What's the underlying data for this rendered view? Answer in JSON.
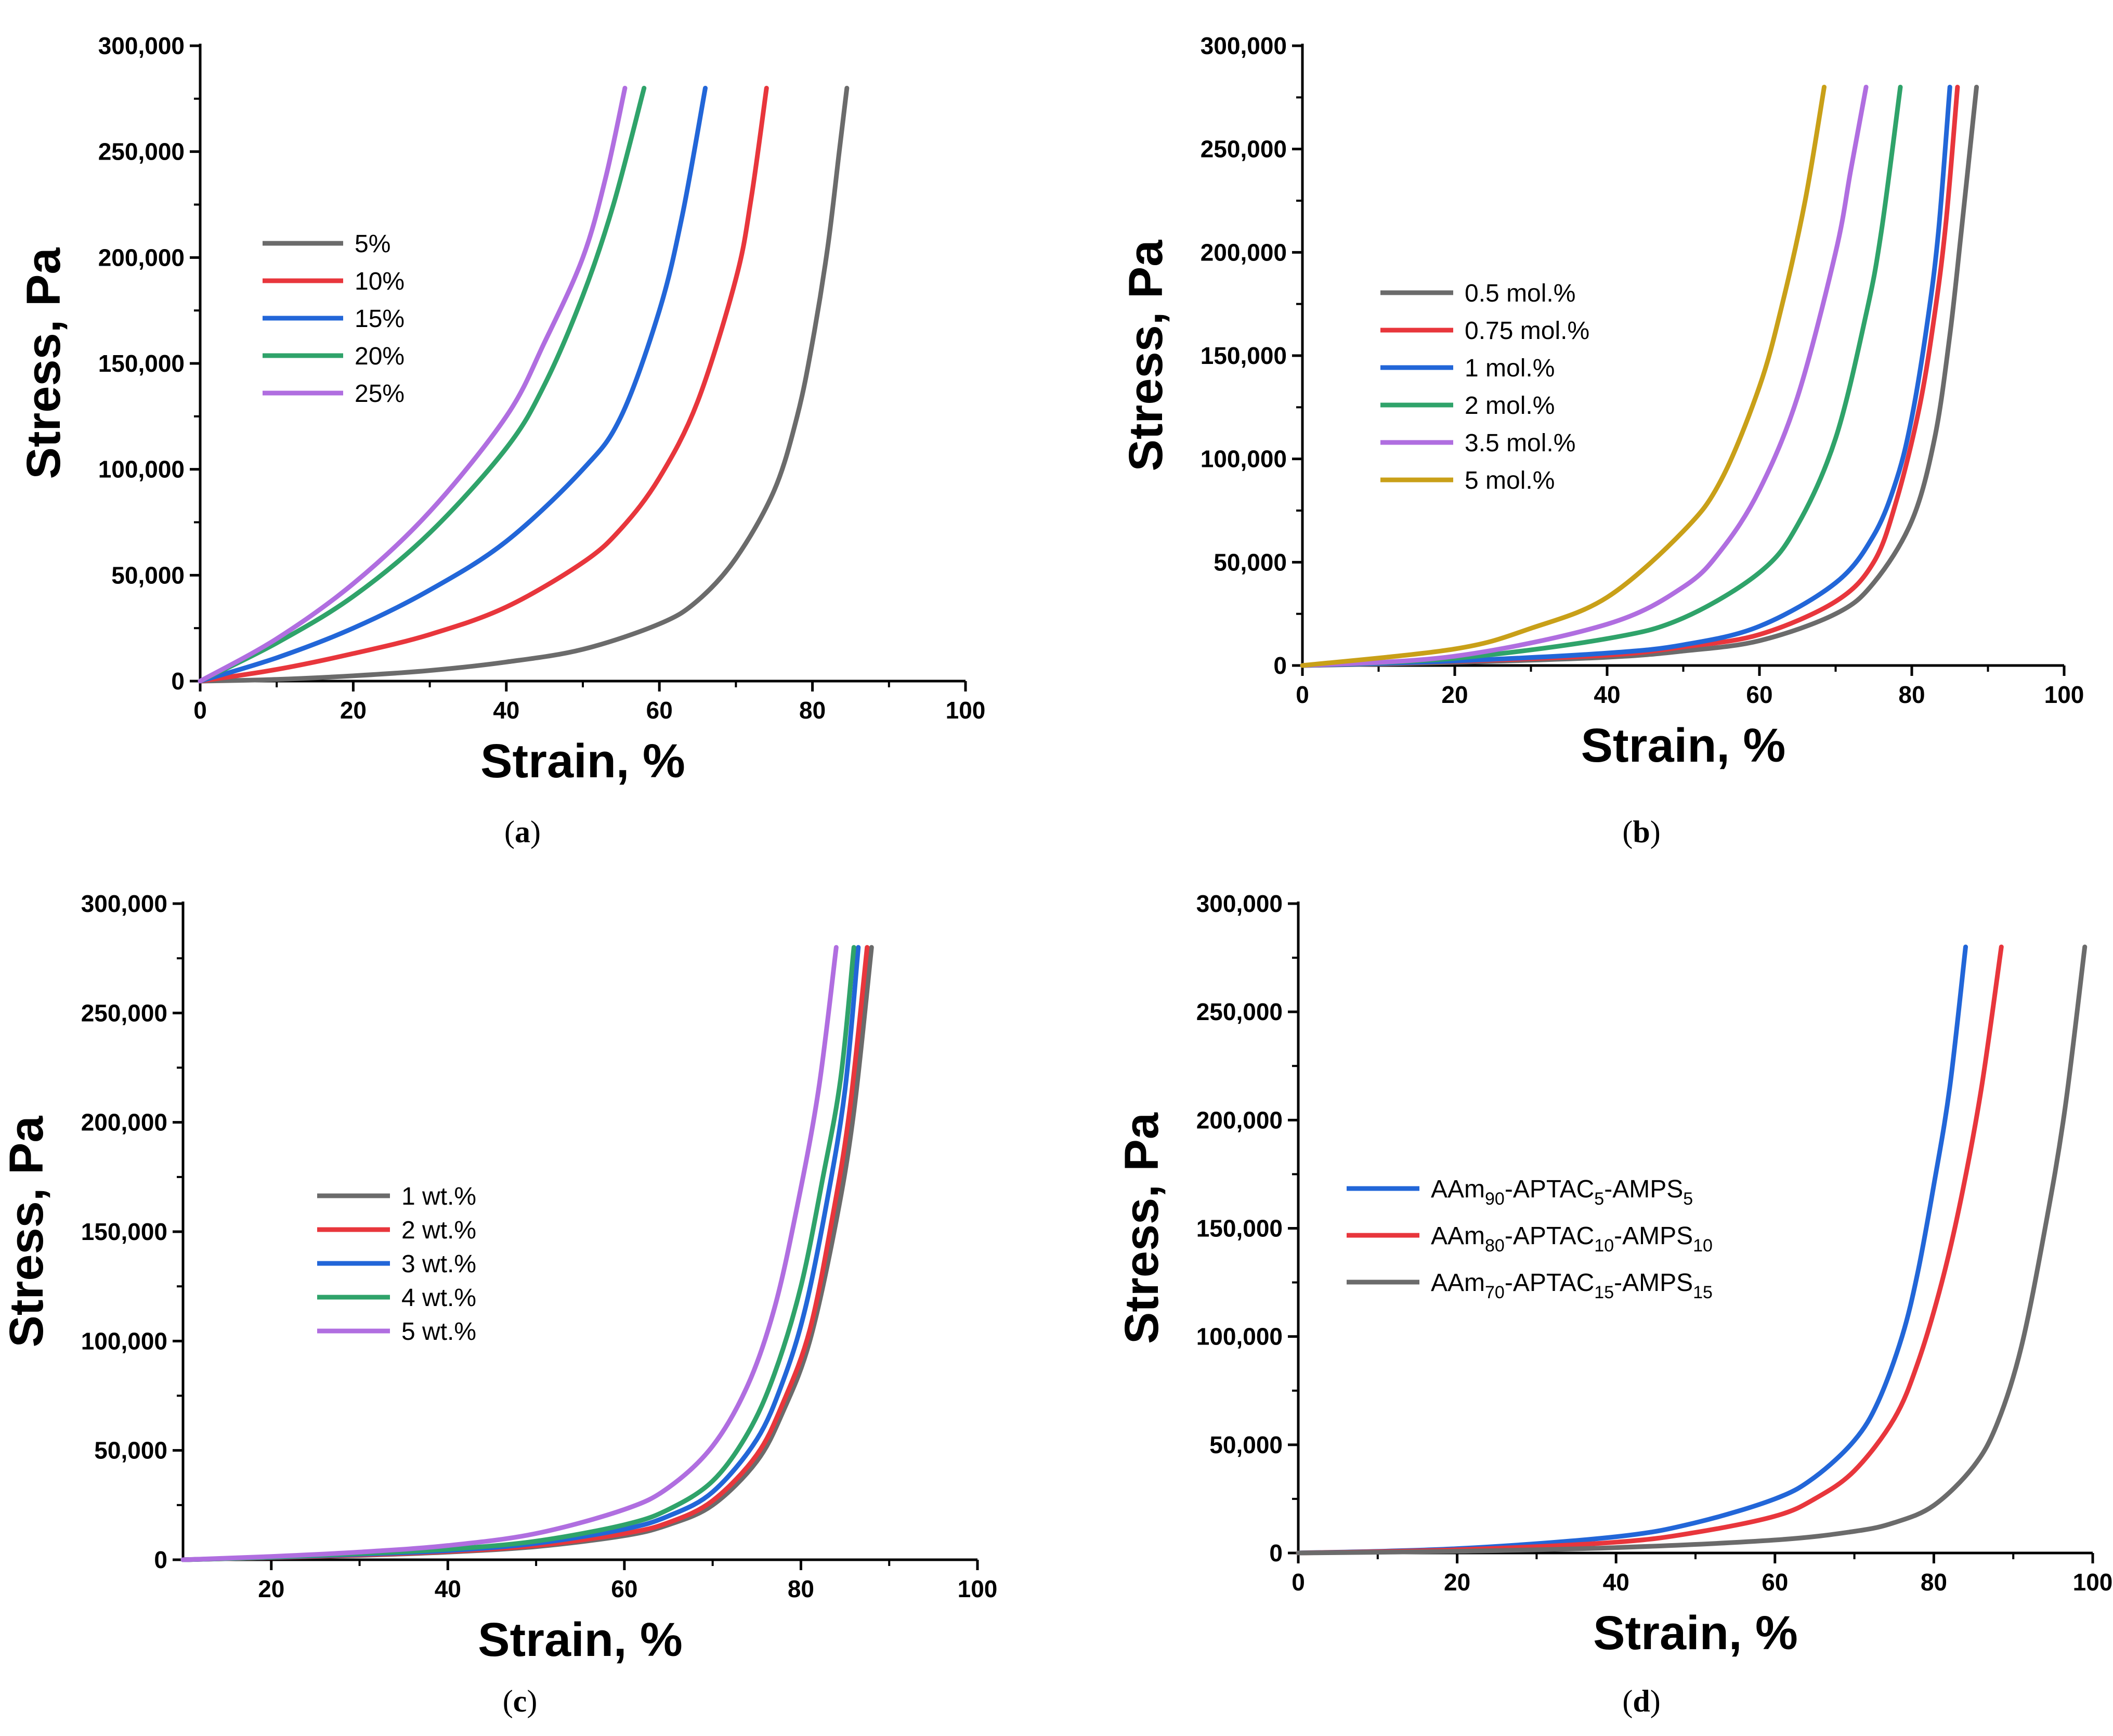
{
  "figure": {
    "panels": [
      "(a)",
      "(b)",
      "(c)",
      "(d)"
    ]
  },
  "chart_data": [
    {
      "panel": "a",
      "panel_label_open": "(",
      "panel_label_letter": "a",
      "panel_label_close": ")",
      "type": "line",
      "xlabel": "Strain, %",
      "ylabel": "Stress, Pa",
      "xlim": [
        0,
        100
      ],
      "ylim": [
        0,
        300000
      ],
      "xticks": [
        0,
        20,
        40,
        60,
        80,
        100
      ],
      "xtick_labels": [
        "0",
        "20",
        "40",
        "60",
        "80",
        "100"
      ],
      "yticks": [
        0,
        50000,
        100000,
        150000,
        200000,
        250000,
        300000
      ],
      "ytick_labels": [
        "0",
        "50,000",
        "100,000",
        "150,000",
        "200,000",
        "250,000",
        "300,000"
      ],
      "legend_position": "upper-left",
      "series": [
        {
          "name": "5%",
          "color": "#6b6b6b",
          "x": [
            0,
            10,
            20,
            30,
            40,
            50,
            60,
            65,
            70,
            75,
            78,
            80,
            82,
            83.5,
            84.5
          ],
          "y": [
            0,
            800,
            2500,
            5000,
            9000,
            15000,
            27000,
            38000,
            58000,
            90000,
            125000,
            160000,
            205000,
            250000,
            280000
          ]
        },
        {
          "name": "10%",
          "color": "#e8363c",
          "x": [
            0,
            10,
            20,
            30,
            40,
            50,
            55,
            60,
            65,
            70,
            72,
            74
          ],
          "y": [
            0,
            5500,
            13000,
            22000,
            35000,
            56000,
            72000,
            96000,
            132000,
            190000,
            228000,
            280000
          ]
        },
        {
          "name": "15%",
          "color": "#2266d8",
          "x": [
            0,
            10,
            20,
            30,
            40,
            50,
            55,
            60,
            63,
            66
          ],
          "y": [
            0,
            11000,
            25000,
            43000,
            66000,
            100000,
            125000,
            175000,
            220000,
            280000
          ]
        },
        {
          "name": "20%",
          "color": "#2fa36a",
          "x": [
            0,
            10,
            20,
            30,
            40,
            45,
            50,
            54,
            58
          ],
          "y": [
            0,
            18000,
            40000,
            70000,
            110000,
            140000,
            182000,
            225000,
            280000
          ]
        },
        {
          "name": "25%",
          "color": "#b06ee0",
          "x": [
            0,
            10,
            20,
            30,
            40,
            45,
            50,
            53,
            55.5
          ],
          "y": [
            0,
            20000,
            46000,
            80000,
            125000,
            160000,
            200000,
            238000,
            280000
          ]
        }
      ]
    },
    {
      "panel": "b",
      "panel_label_open": "(",
      "panel_label_letter": "b",
      "panel_label_close": ")",
      "type": "line",
      "xlabel": "Strain, %",
      "ylabel": "Stress, Pa",
      "xlim": [
        0,
        100
      ],
      "ylim": [
        0,
        300000
      ],
      "xticks": [
        0,
        20,
        40,
        60,
        80,
        100
      ],
      "xtick_labels": [
        "0",
        "20",
        "40",
        "60",
        "80",
        "100"
      ],
      "yticks": [
        0,
        50000,
        100000,
        150000,
        200000,
        250000,
        300000
      ],
      "ytick_labels": [
        "0",
        "50,000",
        "100,000",
        "150,000",
        "200,000",
        "250,000",
        "300,000"
      ],
      "legend_position": "center-left",
      "series": [
        {
          "name": "0.5 mol.%",
          "color": "#6b6b6b",
          "x": [
            0,
            20,
            40,
            50,
            60,
            70,
            75,
            80,
            83,
            85,
            86.5,
            88.5
          ],
          "y": [
            0,
            1500,
            4000,
            7000,
            12000,
            25000,
            40000,
            70000,
            110000,
            160000,
            210000,
            280000
          ]
        },
        {
          "name": "0.75 mol.%",
          "color": "#e8363c",
          "x": [
            0,
            20,
            40,
            50,
            60,
            70,
            75,
            78,
            81,
            83,
            84.5,
            86
          ],
          "y": [
            0,
            2000,
            5000,
            9000,
            15000,
            31000,
            50000,
            80000,
            125000,
            170000,
            215000,
            280000
          ]
        },
        {
          "name": "1 mol.%",
          "color": "#2266d8",
          "x": [
            0,
            20,
            40,
            50,
            60,
            70,
            75,
            78,
            80,
            82,
            83.5,
            85
          ],
          "y": [
            0,
            2200,
            6000,
            10000,
            19000,
            40000,
            63000,
            90000,
            120000,
            165000,
            210000,
            280000
          ]
        },
        {
          "name": "2 mol.%",
          "color": "#2fa36a",
          "x": [
            0,
            20,
            40,
            50,
            60,
            65,
            70,
            74,
            76,
            78.5
          ],
          "y": [
            0,
            3500,
            13000,
            23000,
            45000,
            68000,
            110000,
            170000,
            210000,
            280000
          ]
        },
        {
          "name": "3.5 mol.%",
          "color": "#b06ee0",
          "x": [
            0,
            20,
            40,
            50,
            55,
            60,
            65,
            70,
            72,
            74
          ],
          "y": [
            0,
            4500,
            20000,
            38000,
            56000,
            85000,
            130000,
            200000,
            240000,
            280000
          ]
        },
        {
          "name": "5 mol.%",
          "color": "#c9a018",
          "x": [
            0,
            20,
            30,
            40,
            50,
            55,
            60,
            63,
            66,
            68.5
          ],
          "y": [
            0,
            8000,
            18000,
            33000,
            65000,
            90000,
            135000,
            175000,
            225000,
            280000
          ]
        }
      ]
    },
    {
      "panel": "c",
      "panel_label_open": "(",
      "panel_label_letter": "c",
      "panel_label_close": ")",
      "type": "line",
      "xlabel": "Strain, %",
      "ylabel": "Stress, Pa",
      "xlim": [
        10,
        100
      ],
      "ylim": [
        0,
        300000
      ],
      "xticks": [
        20,
        40,
        60,
        80,
        100
      ],
      "xtick_labels": [
        "20",
        "40",
        "60",
        "80",
        "100"
      ],
      "yticks": [
        0,
        50000,
        100000,
        150000,
        200000,
        250000,
        300000
      ],
      "ytick_labels": [
        "0",
        "50,000",
        "100,000",
        "150,000",
        "200,000",
        "250,000",
        "300,000"
      ],
      "legend_position": "center",
      "series": [
        {
          "name": "1 wt.%",
          "color": "#6b6b6b",
          "x": [
            10,
            20,
            30,
            40,
            50,
            60,
            65,
            70,
            75,
            78,
            81,
            84,
            86,
            88
          ],
          "y": [
            0,
            1000,
            2000,
            3500,
            6000,
            11000,
            16000,
            25000,
            45000,
            68000,
            100000,
            155000,
            205000,
            280000
          ]
        },
        {
          "name": "2 wt.%",
          "color": "#e8363c",
          "x": [
            10,
            20,
            30,
            40,
            50,
            60,
            65,
            70,
            75,
            78,
            81,
            83.5,
            85.5,
            87.5
          ],
          "y": [
            0,
            1000,
            2200,
            3800,
            6500,
            12000,
            17000,
            27000,
            48000,
            72000,
            105000,
            155000,
            205000,
            280000
          ]
        },
        {
          "name": "3 wt.%",
          "color": "#2266d8",
          "x": [
            10,
            20,
            30,
            40,
            50,
            60,
            65,
            70,
            75,
            78,
            80.5,
            83,
            85,
            86.5
          ],
          "y": [
            0,
            1100,
            2500,
            4200,
            7500,
            14000,
            20000,
            31000,
            55000,
            82000,
            115000,
            165000,
            215000,
            280000
          ]
        },
        {
          "name": "4 wt.%",
          "color": "#2fa36a",
          "x": [
            10,
            20,
            30,
            40,
            50,
            60,
            65,
            70,
            74,
            77,
            80,
            82.5,
            84.5,
            86
          ],
          "y": [
            0,
            1200,
            2800,
            4800,
            8500,
            16000,
            23000,
            36000,
            58000,
            85000,
            125000,
            175000,
            220000,
            280000
          ]
        },
        {
          "name": "5 wt.%",
          "color": "#b06ee0",
          "x": [
            10,
            20,
            30,
            40,
            50,
            60,
            65,
            70,
            74,
            77,
            79.5,
            82,
            84
          ],
          "y": [
            0,
            1500,
            3500,
            6500,
            12000,
            23000,
            33000,
            52000,
            80000,
            115000,
            160000,
            215000,
            280000
          ]
        }
      ]
    },
    {
      "panel": "d",
      "panel_label_open": "(",
      "panel_label_letter": "d",
      "panel_label_close": ")",
      "type": "line",
      "xlabel": "Strain, %",
      "ylabel": "Stress, Pa",
      "xlim": [
        0,
        100
      ],
      "ylim": [
        0,
        300000
      ],
      "xticks": [
        0,
        20,
        40,
        60,
        80,
        100
      ],
      "xtick_labels": [
        "0",
        "20",
        "40",
        "60",
        "80",
        "100"
      ],
      "yticks": [
        0,
        50000,
        100000,
        150000,
        200000,
        250000,
        300000
      ],
      "ytick_labels": [
        "0",
        "50,000",
        "100,000",
        "150,000",
        "200,000",
        "250,000",
        "300,000"
      ],
      "legend_position": "center-left",
      "series": [
        {
          "name": "AAm90-APTAC5-AMPS5",
          "legend": [
            {
              "t": "AAm",
              "sub": false
            },
            {
              "t": "90",
              "sub": true
            },
            {
              "t": "-APTAC",
              "sub": false
            },
            {
              "t": "5",
              "sub": true
            },
            {
              "t": "-AMPS",
              "sub": false
            },
            {
              "t": "5",
              "sub": true
            }
          ],
          "color": "#2266d8",
          "x": [
            0,
            20,
            40,
            50,
            60,
            65,
            70,
            73,
            76,
            78,
            80,
            82,
            84
          ],
          "y": [
            0,
            2000,
            7500,
            14000,
            25000,
            35000,
            52000,
            70000,
            100000,
            130000,
            170000,
            215000,
            280000
          ]
        },
        {
          "name": "AAm80-APTAC10-AMPS10",
          "legend": [
            {
              "t": "AAm",
              "sub": false
            },
            {
              "t": "80",
              "sub": true
            },
            {
              "t": "-APTAC",
              "sub": false
            },
            {
              "t": "10",
              "sub": true
            },
            {
              "t": "-AMPS",
              "sub": false
            },
            {
              "t": "10",
              "sub": true
            }
          ],
          "color": "#e8363c",
          "x": [
            0,
            20,
            40,
            50,
            60,
            65,
            70,
            75,
            78,
            81,
            83.5,
            86,
            88.5
          ],
          "y": [
            0,
            1500,
            5000,
            9500,
            17000,
            25000,
            38000,
            62000,
            88000,
            125000,
            165000,
            215000,
            280000
          ]
        },
        {
          "name": "AAm70-APTAC15-AMPS15",
          "legend": [
            {
              "t": "AAm",
              "sub": false
            },
            {
              "t": "70",
              "sub": true
            },
            {
              "t": "-APTAC",
              "sub": false
            },
            {
              "t": "15",
              "sub": true
            },
            {
              "t": "-AMPS",
              "sub": false
            },
            {
              "t": "15",
              "sub": true
            }
          ],
          "color": "#6b6b6b",
          "x": [
            0,
            20,
            40,
            60,
            70,
            75,
            80,
            85,
            88,
            91,
            94,
            96.5,
            99
          ],
          "y": [
            0,
            800,
            2500,
            6000,
            10000,
            14000,
            22000,
            40000,
            60000,
            95000,
            150000,
            205000,
            280000
          ]
        }
      ]
    }
  ]
}
